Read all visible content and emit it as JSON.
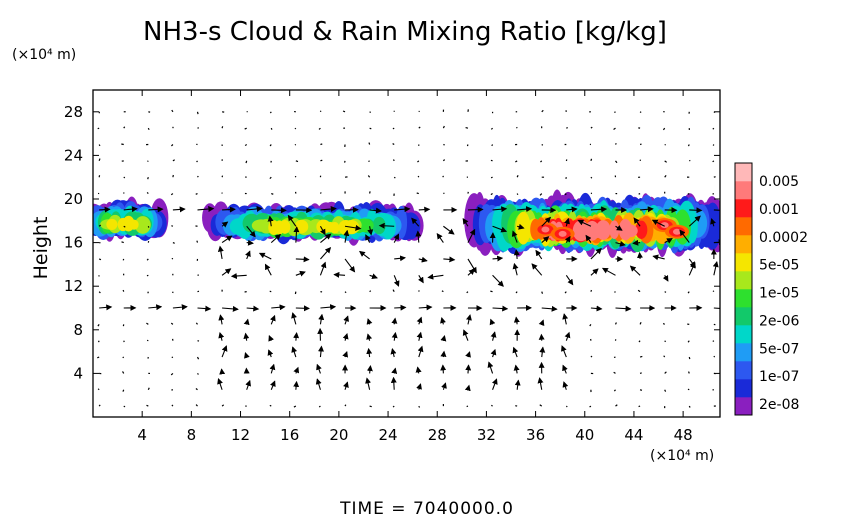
{
  "chart_data": {
    "type": "heatmap",
    "title": "NH3-s Cloud & Rain Mixing Ratio [kg/kg]",
    "ylabel": "Height",
    "x_unit_label": "(×10⁴ m)",
    "y_unit_label": "(×10⁴ m)",
    "xlim": [
      0,
      51
    ],
    "ylim": [
      0,
      30
    ],
    "x_ticks": [
      4,
      8,
      12,
      16,
      20,
      24,
      28,
      32,
      36,
      40,
      44,
      48
    ],
    "y_ticks": [
      4,
      8,
      12,
      16,
      20,
      24,
      28
    ],
    "footer": "TIME  =  7040000.0",
    "colorbar": {
      "colors": [
        "#8a1fbf",
        "#1a2ad8",
        "#2d58f0",
        "#1f9cf5",
        "#00d7c9",
        "#12c96a",
        "#2ee02e",
        "#a8e81c",
        "#f5e600",
        "#ffae00",
        "#ff6a00",
        "#ff1a1a",
        "#ff7a7a",
        "#ffb8b8"
      ],
      "labels": [
        "2e-08",
        "1e-07",
        "5e-07",
        "2e-06",
        "1e-05",
        "5e-05",
        "0.0002",
        "0.001",
        "0.005"
      ],
      "level_values": [
        2e-08,
        1e-07,
        5e-07,
        2e-06,
        1e-05,
        5e-05,
        0.0002,
        0.001,
        0.005
      ]
    },
    "cloud_regions": [
      {
        "x": [
          0,
          5.5
        ],
        "y": [
          16.7,
          19.6
        ],
        "max_level": 8
      },
      {
        "x": [
          9.5,
          26.5
        ],
        "y": [
          16.5,
          19.3
        ],
        "max_level": 8
      },
      {
        "x": [
          31,
          51
        ],
        "y": [
          15.5,
          19.8
        ],
        "max_level": 12
      }
    ],
    "wind_vectors": "velocity field arrows over whole domain (approximate)"
  }
}
